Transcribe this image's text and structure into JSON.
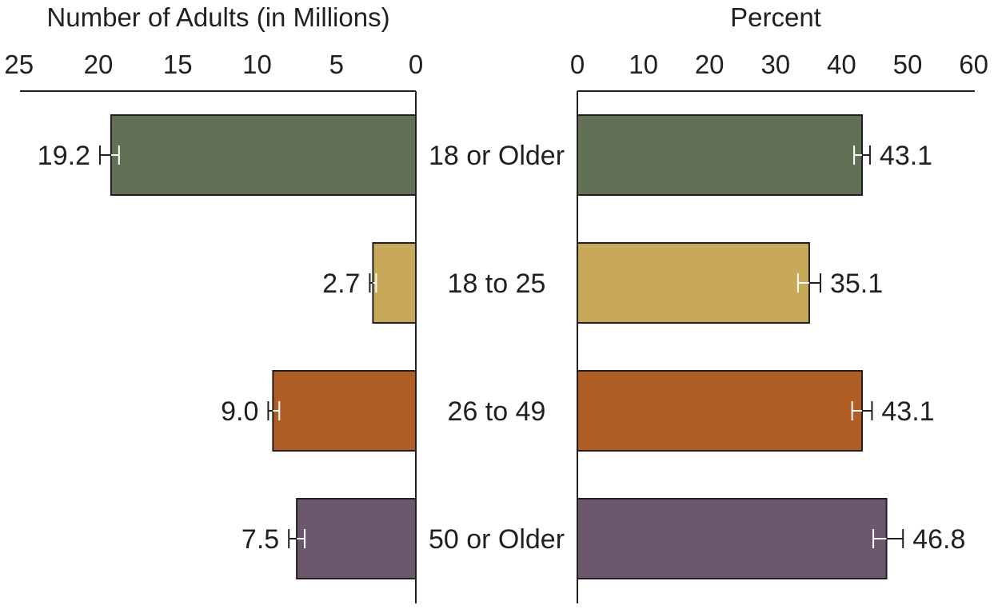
{
  "chart_data": [
    {
      "type": "bar",
      "orientation": "horizontal",
      "direction": "right-to-left",
      "title": "Number of Adults (in Millions)",
      "xlabel": "Number of Adults (in Millions)",
      "categories": [
        "18 or Older",
        "18 to 25",
        "26 to 49",
        "50 or Older"
      ],
      "values": [
        19.2,
        2.7,
        9.0,
        7.5
      ],
      "value_labels": [
        "19.2",
        "2.7",
        "9.0",
        "7.5"
      ],
      "error_low": [
        18.7,
        2.5,
        8.6,
        7.0
      ],
      "error_high": [
        19.9,
        2.9,
        9.3,
        8.0
      ],
      "xlim": [
        0,
        25
      ],
      "ticks": [
        25,
        20,
        15,
        10,
        5,
        0
      ],
      "colors": [
        "#627055",
        "#c8a95a",
        "#b05e25",
        "#6b586c"
      ]
    },
    {
      "type": "bar",
      "orientation": "horizontal",
      "direction": "left-to-right",
      "title": "Percent",
      "xlabel": "Percent",
      "categories": [
        "18 or Older",
        "18 to 25",
        "26 to 49",
        "50 or Older"
      ],
      "values": [
        43.1,
        35.1,
        43.1,
        46.8
      ],
      "value_labels": [
        "43.1",
        "35.1",
        "43.1",
        "46.8"
      ],
      "error_low": [
        41.9,
        33.4,
        41.6,
        44.8
      ],
      "error_high": [
        44.3,
        36.8,
        44.6,
        49.3
      ],
      "xlim": [
        0,
        60
      ],
      "ticks": [
        0,
        10,
        20,
        30,
        40,
        50,
        60
      ],
      "colors": [
        "#627055",
        "#c8a95a",
        "#b05e25",
        "#6b586c"
      ]
    }
  ]
}
